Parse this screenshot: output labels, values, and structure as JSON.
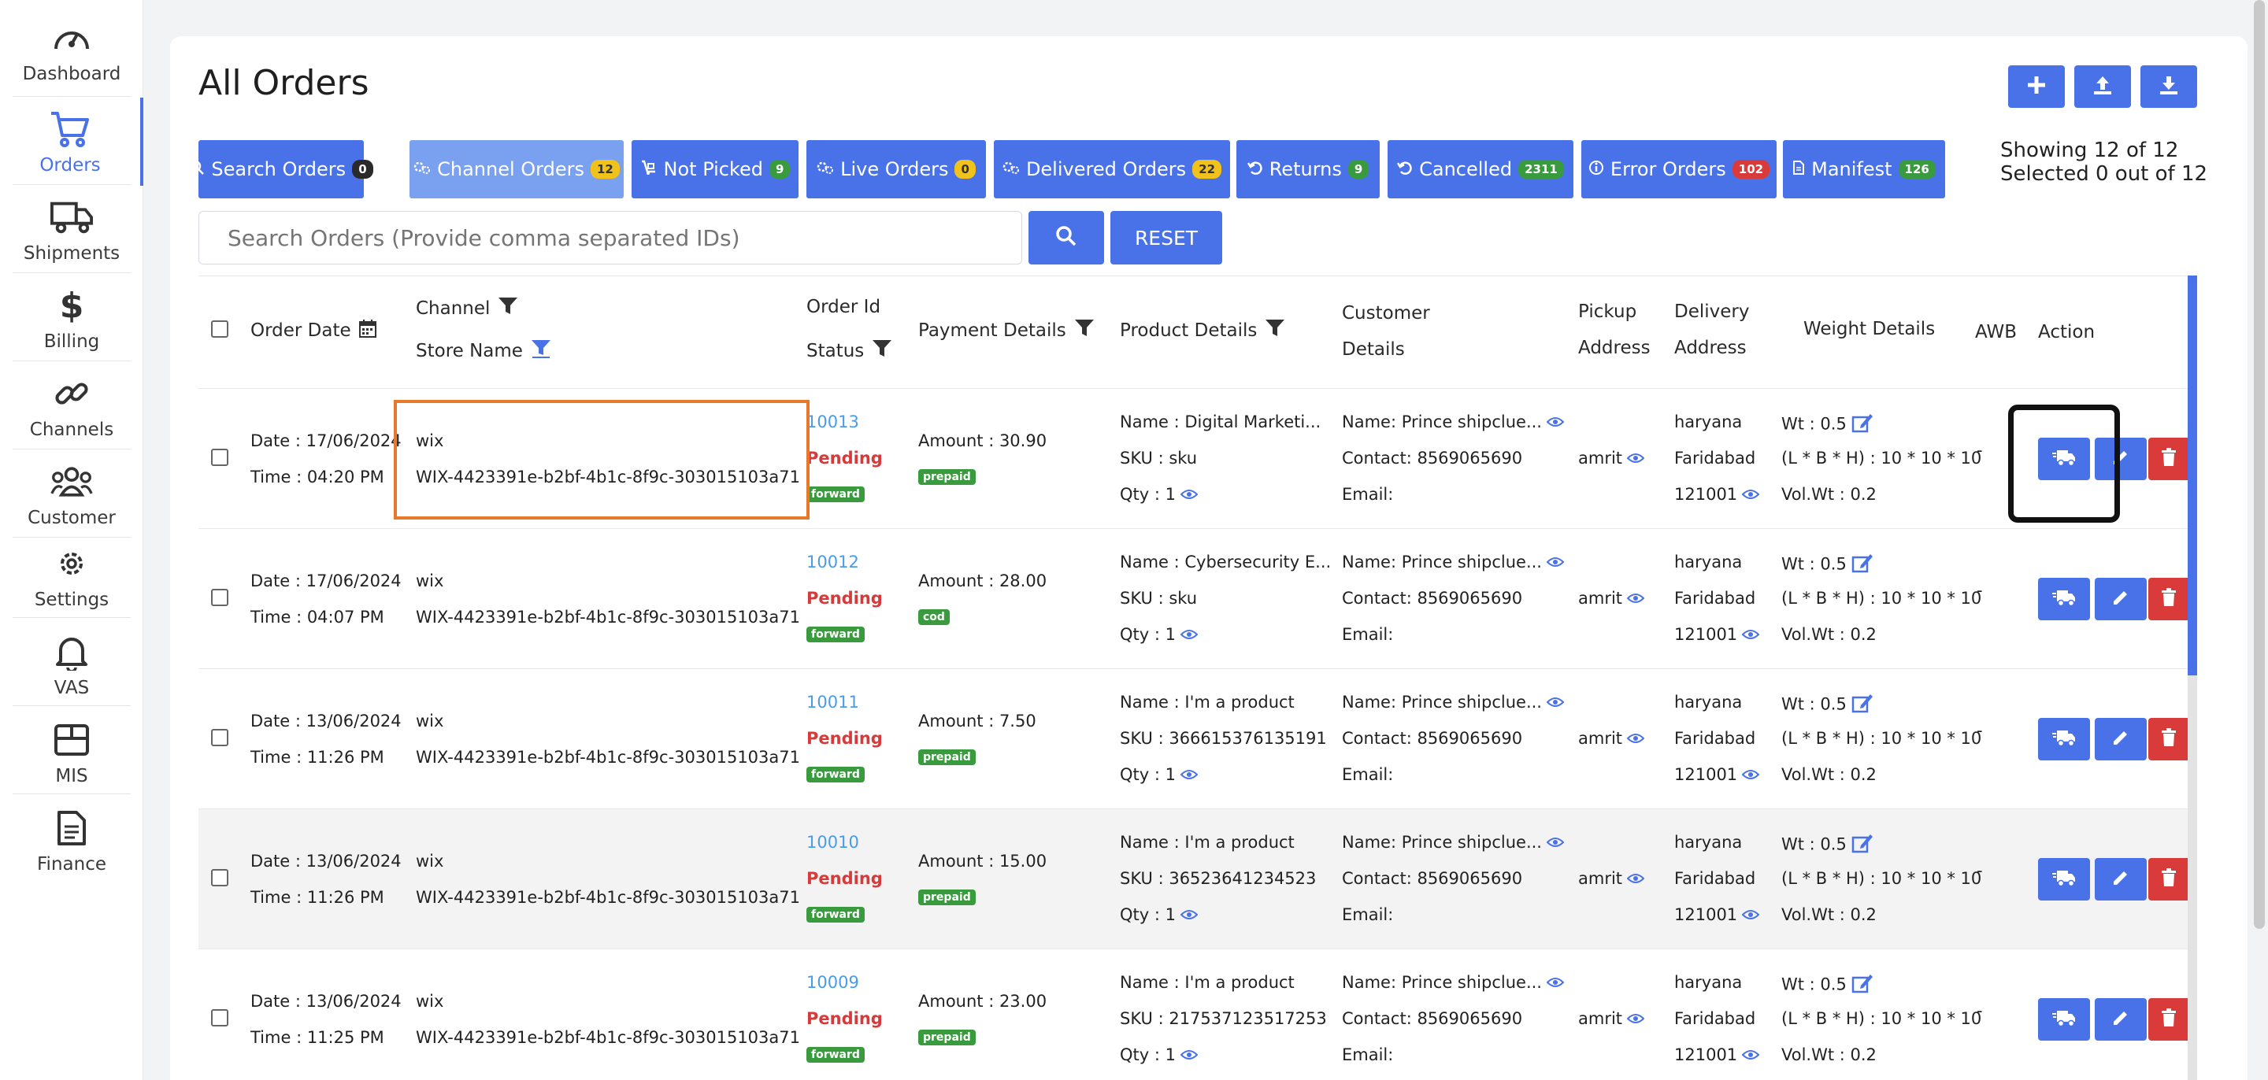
{
  "sidebar": {
    "items": [
      {
        "label": "Dashboard",
        "icon": "gauge-icon"
      },
      {
        "label": "Orders",
        "icon": "cart-icon"
      },
      {
        "label": "Shipments",
        "icon": "truck-icon"
      },
      {
        "label": "Billing",
        "icon": "dollar-icon"
      },
      {
        "label": "Channels",
        "icon": "link-icon"
      },
      {
        "label": "Customer",
        "icon": "users-icon"
      },
      {
        "label": "Settings",
        "icon": "gear-icon"
      },
      {
        "label": "VAS",
        "icon": "bell-icon"
      },
      {
        "label": "MIS",
        "icon": "box-icon"
      },
      {
        "label": "Finance",
        "icon": "document-icon"
      }
    ],
    "active": "Orders"
  },
  "header": {
    "title": "All Orders",
    "buttons": [
      "plus-icon",
      "upload-icon",
      "download-icon"
    ]
  },
  "tabs": [
    {
      "label": "Search Orders",
      "count": "0",
      "badge": "dark"
    },
    {
      "label": "Channel Orders",
      "count": "12",
      "badge": "yellow"
    },
    {
      "label": "Not Picked",
      "count": "9",
      "badge": "green"
    },
    {
      "label": "Live Orders",
      "count": "0",
      "badge": "yellow"
    },
    {
      "label": "Delivered Orders",
      "count": "22",
      "badge": "yellow"
    },
    {
      "label": "Returns",
      "count": "9",
      "badge": "green"
    },
    {
      "label": "Cancelled",
      "count": "2311",
      "badge": "green"
    },
    {
      "label": "Error Orders",
      "count": "102",
      "badge": "red"
    },
    {
      "label": "Manifest",
      "count": "126",
      "badge": "green"
    }
  ],
  "summary": {
    "showing": "Showing 12 of 12",
    "selected": "Selected 0 out of 12"
  },
  "search": {
    "placeholder": "Search Orders (Provide comma separated IDs)",
    "reset_label": "RESET"
  },
  "table": {
    "headers": {
      "order_date": "Order Date",
      "channel": "Channel",
      "store_name": "Store Name",
      "order_id": "Order Id",
      "status": "Status",
      "payment": "Payment Details",
      "product": "Product Details",
      "customer_1": "Customer",
      "customer_2": "Details",
      "pickup_1": "Pickup",
      "pickup_2": "Address",
      "delivery_1": "Delivery",
      "delivery_2": "Address",
      "weight": "Weight Details",
      "awb": "AWB",
      "action": "Action"
    },
    "rows": [
      {
        "date": "Date : 17/06/2024",
        "time": "Time : 04:20 PM",
        "channel": "wix",
        "store": "WIX-4423391e-b2bf-4b1c-8f9c-303015103a71",
        "order_id": "10013",
        "status": "Pending",
        "direction": "forward",
        "amount": "Amount : 30.90",
        "payment_type": "prepaid",
        "product_name": "Name : Digital Marketi...",
        "sku": "SKU : sku",
        "qty": "Qty : 1",
        "customer_name": "Name: Prince shipclue...",
        "contact": "Contact: 8569065690",
        "email": "Email:",
        "pickup": "amrit",
        "state": "haryana",
        "city": "Faridabad",
        "pin": "121001",
        "wt": "Wt : 0.5",
        "dims": "(L * B * H) : 10 * 10 * 10",
        "volwt": "Vol.Wt : 0.2",
        "awb": "-"
      },
      {
        "date": "Date : 17/06/2024",
        "time": "Time : 04:07 PM",
        "channel": "wix",
        "store": "WIX-4423391e-b2bf-4b1c-8f9c-303015103a71",
        "order_id": "10012",
        "status": "Pending",
        "direction": "forward",
        "amount": "Amount : 28.00",
        "payment_type": "cod",
        "product_name": "Name : Cybersecurity E...",
        "sku": "SKU : sku",
        "qty": "Qty : 1",
        "customer_name": "Name: Prince shipclue...",
        "contact": "Contact: 8569065690",
        "email": "Email:",
        "pickup": "amrit",
        "state": "haryana",
        "city": "Faridabad",
        "pin": "121001",
        "wt": "Wt : 0.5",
        "dims": "(L * B * H) : 10 * 10 * 10",
        "volwt": "Vol.Wt : 0.2",
        "awb": "-"
      },
      {
        "date": "Date : 13/06/2024",
        "time": "Time : 11:26 PM",
        "channel": "wix",
        "store": "WIX-4423391e-b2bf-4b1c-8f9c-303015103a71",
        "order_id": "10011",
        "status": "Pending",
        "direction": "forward",
        "amount": "Amount : 7.50",
        "payment_type": "prepaid",
        "product_name": "Name : I'm a product",
        "sku": "SKU : 366615376135191",
        "qty": "Qty : 1",
        "customer_name": "Name: Prince shipclue...",
        "contact": "Contact: 8569065690",
        "email": "Email:",
        "pickup": "amrit",
        "state": "haryana",
        "city": "Faridabad",
        "pin": "121001",
        "wt": "Wt : 0.5",
        "dims": "(L * B * H) : 10 * 10 * 10",
        "volwt": "Vol.Wt : 0.2",
        "awb": "-"
      },
      {
        "date": "Date : 13/06/2024",
        "time": "Time : 11:26 PM",
        "channel": "wix",
        "store": "WIX-4423391e-b2bf-4b1c-8f9c-303015103a71",
        "order_id": "10010",
        "status": "Pending",
        "direction": "forward",
        "amount": "Amount : 15.00",
        "payment_type": "prepaid",
        "product_name": "Name : I'm a product",
        "sku": "SKU : 36523641234523",
        "qty": "Qty : 1",
        "customer_name": "Name: Prince shipclue...",
        "contact": "Contact: 8569065690",
        "email": "Email:",
        "pickup": "amrit",
        "state": "haryana",
        "city": "Faridabad",
        "pin": "121001",
        "wt": "Wt : 0.5",
        "dims": "(L * B * H) : 10 * 10 * 10",
        "volwt": "Vol.Wt : 0.2",
        "awb": "-"
      },
      {
        "date": "Date : 13/06/2024",
        "time": "Time : 11:25 PM",
        "channel": "wix",
        "store": "WIX-4423391e-b2bf-4b1c-8f9c-303015103a71",
        "order_id": "10009",
        "status": "Pending",
        "direction": "forward",
        "amount": "Amount : 23.00",
        "payment_type": "prepaid",
        "product_name": "Name : I'm a product",
        "sku": "SKU : 217537123517253",
        "qty": "Qty : 1",
        "customer_name": "Name: Prince shipclue...",
        "contact": "Contact: 8569065690",
        "email": "Email:",
        "pickup": "amrit",
        "state": "haryana",
        "city": "Faridabad",
        "pin": "121001",
        "wt": "Wt : 0.5",
        "dims": "(L * B * H) : 10 * 10 * 10",
        "volwt": "Vol.Wt : 0.2",
        "awb": "-"
      }
    ]
  },
  "colors": {
    "accent": "#4a72e8",
    "danger": "#d93a3a",
    "success": "#3a9a3e",
    "link": "#4a9be8",
    "highlight_orange": "#e8782a"
  }
}
